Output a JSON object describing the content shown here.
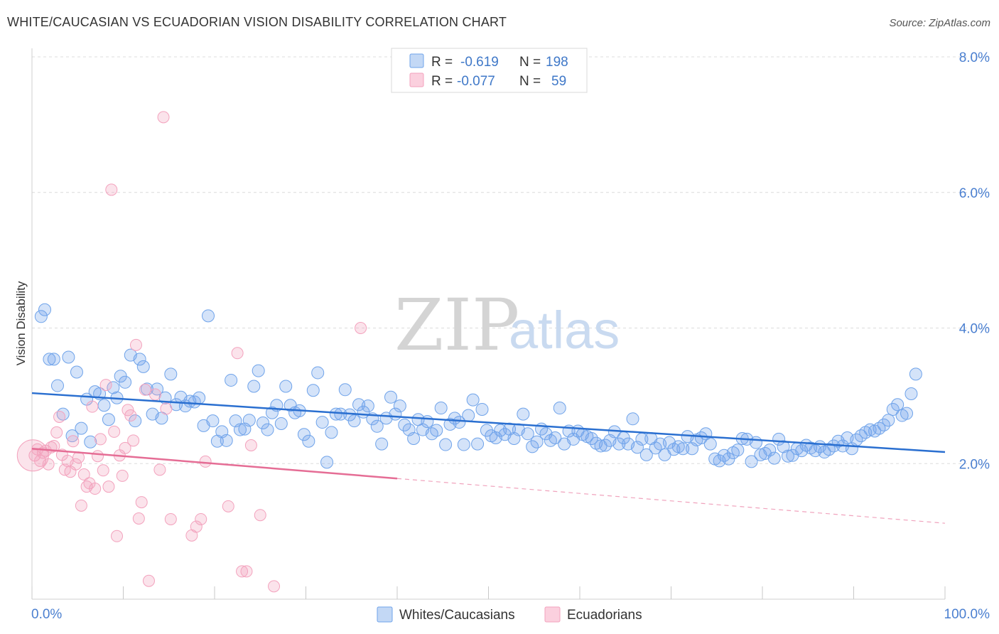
{
  "title": "WHITE/CAUCASIAN VS ECUADORIAN VISION DISABILITY CORRELATION CHART",
  "source": "Source: ZipAtlas.com",
  "watermark": {
    "zip": "ZIP",
    "atlas": "atlas"
  },
  "legend": {
    "rows": [
      {
        "r_label": "R =",
        "r_value": "-0.619",
        "n_label": "N =",
        "n_value": "198",
        "color": "#6fa3ea"
      },
      {
        "r_label": "R =",
        "r_value": "-0.077",
        "n_label": "N =",
        "n_value": "59",
        "color": "#f3a2bd"
      }
    ]
  },
  "bottom_legend": [
    {
      "label": "Whites/Caucasians",
      "color": "#6fa3ea"
    },
    {
      "label": "Ecuadorians",
      "color": "#f3a2bd"
    }
  ],
  "chart_data": {
    "type": "scatter",
    "title": "WHITE/CAUCASIAN VS ECUADORIAN VISION DISABILITY CORRELATION CHART",
    "xlabel": "",
    "ylabel": "Vision Disability",
    "xlim": [
      0,
      100
    ],
    "ylim": [
      0,
      8.0
    ],
    "x_tick_labels": [
      "0.0%",
      "100.0%"
    ],
    "y_ticks": [
      2,
      4,
      6,
      8
    ],
    "y_tick_labels": [
      "2.0%",
      "4.0%",
      "6.0%",
      "8.0%"
    ],
    "grid": "horizontal dashed",
    "legend_position": "top-center",
    "series": [
      {
        "name": "Whites/Caucasians",
        "color": "#6fa3ea",
        "trend": {
          "x": [
            0,
            100
          ],
          "y": [
            3.04,
            2.17
          ],
          "dashed_from": null
        },
        "points": [
          [
            1.0,
            4.17
          ],
          [
            1.4,
            4.27
          ],
          [
            1.9,
            3.54
          ],
          [
            2.4,
            3.54
          ],
          [
            2.8,
            3.15
          ],
          [
            3.4,
            2.73
          ],
          [
            4.0,
            3.57
          ],
          [
            4.4,
            2.41
          ],
          [
            4.9,
            3.35
          ],
          [
            5.4,
            2.52
          ],
          [
            6.0,
            2.95
          ],
          [
            6.4,
            2.32
          ],
          [
            6.9,
            3.06
          ],
          [
            7.4,
            3.03
          ],
          [
            7.9,
            2.86
          ],
          [
            8.4,
            2.65
          ],
          [
            8.9,
            3.12
          ],
          [
            9.3,
            2.97
          ],
          [
            9.7,
            3.29
          ],
          [
            10.2,
            3.2
          ],
          [
            10.8,
            3.6
          ],
          [
            11.3,
            2.63
          ],
          [
            11.8,
            3.54
          ],
          [
            12.2,
            3.43
          ],
          [
            12.6,
            3.1
          ],
          [
            13.2,
            2.73
          ],
          [
            13.7,
            3.1
          ],
          [
            14.2,
            2.67
          ],
          [
            14.6,
            2.97
          ],
          [
            15.2,
            3.32
          ],
          [
            15.8,
            2.87
          ],
          [
            16.3,
            2.98
          ],
          [
            16.8,
            2.85
          ],
          [
            17.3,
            2.92
          ],
          [
            17.8,
            2.91
          ],
          [
            18.3,
            2.97
          ],
          [
            18.8,
            2.56
          ],
          [
            19.3,
            4.18
          ],
          [
            19.8,
            2.63
          ],
          [
            20.3,
            2.33
          ],
          [
            20.8,
            2.47
          ],
          [
            21.3,
            2.34
          ],
          [
            21.8,
            3.23
          ],
          [
            22.3,
            2.63
          ],
          [
            22.8,
            2.5
          ],
          [
            23.3,
            2.51
          ],
          [
            23.8,
            2.64
          ],
          [
            24.3,
            3.14
          ],
          [
            24.8,
            3.37
          ],
          [
            25.3,
            2.6
          ],
          [
            25.8,
            2.5
          ],
          [
            26.3,
            2.75
          ],
          [
            26.8,
            2.86
          ],
          [
            27.3,
            2.59
          ],
          [
            27.8,
            3.14
          ],
          [
            28.3,
            2.86
          ],
          [
            28.8,
            2.75
          ],
          [
            29.3,
            2.78
          ],
          [
            29.8,
            2.43
          ],
          [
            30.3,
            2.33
          ],
          [
            30.8,
            3.08
          ],
          [
            31.3,
            3.34
          ],
          [
            31.8,
            2.61
          ],
          [
            32.3,
            2.02
          ],
          [
            32.8,
            2.46
          ],
          [
            33.3,
            2.73
          ],
          [
            33.8,
            2.73
          ],
          [
            34.3,
            3.09
          ],
          [
            34.8,
            2.72
          ],
          [
            35.3,
            2.63
          ],
          [
            35.8,
            2.87
          ],
          [
            36.3,
            2.76
          ],
          [
            36.8,
            2.85
          ],
          [
            37.3,
            2.66
          ],
          [
            37.8,
            2.55
          ],
          [
            38.3,
            2.29
          ],
          [
            38.8,
            2.67
          ],
          [
            39.3,
            2.98
          ],
          [
            39.8,
            2.73
          ],
          [
            40.3,
            2.85
          ],
          [
            40.8,
            2.57
          ],
          [
            41.3,
            2.5
          ],
          [
            41.8,
            2.37
          ],
          [
            42.3,
            2.65
          ],
          [
            42.8,
            2.5
          ],
          [
            43.3,
            2.62
          ],
          [
            43.8,
            2.44
          ],
          [
            44.3,
            2.49
          ],
          [
            44.8,
            2.82
          ],
          [
            45.3,
            2.28
          ],
          [
            45.8,
            2.58
          ],
          [
            46.3,
            2.67
          ],
          [
            46.8,
            2.61
          ],
          [
            47.3,
            2.28
          ],
          [
            47.8,
            2.71
          ],
          [
            48.3,
            2.94
          ],
          [
            48.8,
            2.29
          ],
          [
            49.3,
            2.8
          ],
          [
            49.8,
            2.49
          ],
          [
            50.3,
            2.41
          ],
          [
            50.8,
            2.38
          ],
          [
            51.3,
            2.49
          ],
          [
            51.8,
            2.43
          ],
          [
            52.3,
            2.51
          ],
          [
            52.8,
            2.37
          ],
          [
            53.3,
            2.5
          ],
          [
            53.8,
            2.73
          ],
          [
            54.3,
            2.44
          ],
          [
            54.8,
            2.25
          ],
          [
            55.3,
            2.32
          ],
          [
            55.8,
            2.51
          ],
          [
            56.3,
            2.44
          ],
          [
            56.8,
            2.34
          ],
          [
            57.3,
            2.38
          ],
          [
            57.8,
            2.82
          ],
          [
            58.3,
            2.29
          ],
          [
            58.8,
            2.48
          ],
          [
            59.3,
            2.36
          ],
          [
            59.8,
            2.48
          ],
          [
            60.3,
            2.43
          ],
          [
            60.8,
            2.4
          ],
          [
            61.3,
            2.37
          ],
          [
            61.8,
            2.3
          ],
          [
            62.3,
            2.26
          ],
          [
            62.8,
            2.27
          ],
          [
            63.3,
            2.34
          ],
          [
            63.8,
            2.47
          ],
          [
            64.3,
            2.29
          ],
          [
            64.8,
            2.38
          ],
          [
            65.3,
            2.29
          ],
          [
            65.8,
            2.66
          ],
          [
            66.3,
            2.24
          ],
          [
            66.8,
            2.36
          ],
          [
            67.3,
            2.13
          ],
          [
            67.8,
            2.37
          ],
          [
            68.3,
            2.23
          ],
          [
            68.8,
            2.29
          ],
          [
            69.3,
            2.13
          ],
          [
            69.8,
            2.31
          ],
          [
            70.3,
            2.21
          ],
          [
            70.8,
            2.25
          ],
          [
            71.3,
            2.22
          ],
          [
            71.8,
            2.4
          ],
          [
            72.3,
            2.22
          ],
          [
            72.8,
            2.35
          ],
          [
            73.3,
            2.38
          ],
          [
            73.8,
            2.44
          ],
          [
            74.3,
            2.29
          ],
          [
            74.8,
            2.07
          ],
          [
            75.3,
            2.04
          ],
          [
            75.8,
            2.12
          ],
          [
            76.3,
            2.07
          ],
          [
            76.8,
            2.16
          ],
          [
            77.3,
            2.2
          ],
          [
            77.8,
            2.37
          ],
          [
            78.3,
            2.36
          ],
          [
            78.8,
            2.03
          ],
          [
            79.3,
            2.31
          ],
          [
            79.8,
            2.13
          ],
          [
            80.3,
            2.15
          ],
          [
            80.8,
            2.2
          ],
          [
            81.3,
            2.08
          ],
          [
            81.8,
            2.36
          ],
          [
            82.3,
            2.25
          ],
          [
            82.8,
            2.11
          ],
          [
            83.3,
            2.12
          ],
          [
            83.8,
            2.22
          ],
          [
            84.3,
            2.19
          ],
          [
            84.8,
            2.27
          ],
          [
            85.3,
            2.23
          ],
          [
            85.8,
            2.19
          ],
          [
            86.3,
            2.25
          ],
          [
            86.8,
            2.17
          ],
          [
            87.3,
            2.21
          ],
          [
            87.8,
            2.26
          ],
          [
            88.3,
            2.33
          ],
          [
            88.8,
            2.26
          ],
          [
            89.3,
            2.38
          ],
          [
            89.8,
            2.22
          ],
          [
            90.3,
            2.35
          ],
          [
            90.8,
            2.41
          ],
          [
            91.3,
            2.46
          ],
          [
            91.8,
            2.5
          ],
          [
            92.3,
            2.48
          ],
          [
            92.8,
            2.52
          ],
          [
            93.3,
            2.57
          ],
          [
            93.8,
            2.64
          ],
          [
            94.3,
            2.8
          ],
          [
            94.8,
            2.87
          ],
          [
            95.3,
            2.71
          ],
          [
            95.8,
            2.74
          ],
          [
            96.3,
            3.03
          ],
          [
            96.8,
            3.32
          ]
        ]
      },
      {
        "name": "Ecuadorians",
        "color": "#f3a2bd",
        "trend": {
          "x": [
            0,
            100
          ],
          "y": [
            2.22,
            1.12
          ],
          "solid_until": 40
        },
        "points": [
          [
            0.3,
            2.12
          ],
          [
            0.6,
            2.21
          ],
          [
            0.9,
            2.04
          ],
          [
            1.2,
            2.16
          ],
          [
            1.5,
            2.19
          ],
          [
            1.8,
            1.99
          ],
          [
            2.1,
            2.24
          ],
          [
            2.4,
            2.26
          ],
          [
            2.7,
            2.46
          ],
          [
            3.0,
            2.69
          ],
          [
            3.3,
            2.13
          ],
          [
            3.6,
            1.91
          ],
          [
            3.9,
            2.04
          ],
          [
            4.2,
            1.88
          ],
          [
            4.5,
            2.33
          ],
          [
            4.8,
            1.99
          ],
          [
            5.1,
            2.09
          ],
          [
            5.4,
            1.38
          ],
          [
            5.7,
            1.84
          ],
          [
            6.0,
            1.66
          ],
          [
            6.3,
            1.71
          ],
          [
            6.6,
            2.84
          ],
          [
            6.9,
            1.63
          ],
          [
            7.2,
            2.11
          ],
          [
            7.5,
            2.36
          ],
          [
            7.8,
            1.9
          ],
          [
            8.1,
            3.16
          ],
          [
            8.4,
            1.66
          ],
          [
            8.7,
            6.04
          ],
          [
            9.0,
            2.47
          ],
          [
            9.3,
            0.93
          ],
          [
            9.6,
            2.12
          ],
          [
            9.9,
            1.82
          ],
          [
            10.2,
            2.23
          ],
          [
            10.5,
            2.79
          ],
          [
            10.8,
            2.71
          ],
          [
            11.1,
            2.34
          ],
          [
            11.4,
            3.75
          ],
          [
            11.7,
            1.19
          ],
          [
            12.0,
            1.43
          ],
          [
            12.4,
            3.09
          ],
          [
            12.8,
            0.27
          ],
          [
            13.5,
            3.02
          ],
          [
            14.0,
            1.91
          ],
          [
            14.4,
            7.11
          ],
          [
            14.7,
            2.81
          ],
          [
            15.2,
            1.18
          ],
          [
            17.5,
            0.94
          ],
          [
            18.0,
            1.07
          ],
          [
            18.5,
            1.18
          ],
          [
            19.0,
            2.03
          ],
          [
            21.5,
            1.37
          ],
          [
            22.5,
            3.63
          ],
          [
            23.0,
            0.41
          ],
          [
            23.5,
            0.41
          ],
          [
            24.0,
            2.27
          ],
          [
            25.0,
            1.24
          ],
          [
            26.5,
            0.19
          ],
          [
            36.0,
            4.0
          ]
        ]
      }
    ]
  }
}
